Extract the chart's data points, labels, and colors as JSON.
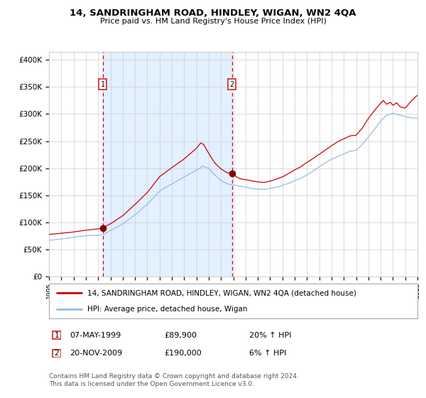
{
  "title_line1": "14, SANDRINGHAM ROAD, HINDLEY, WIGAN, WN2 4QA",
  "title_line2": "Price paid vs. HM Land Registry's House Price Index (HPI)",
  "ylabel_ticks": [
    "£0",
    "£50K",
    "£100K",
    "£150K",
    "£200K",
    "£250K",
    "£300K",
    "£350K",
    "£400K"
  ],
  "ytick_values": [
    0,
    50000,
    100000,
    150000,
    200000,
    250000,
    300000,
    350000,
    400000
  ],
  "ylim": [
    0,
    415000
  ],
  "xlim_start": 1995,
  "xlim_end": 2025,
  "xtick_years": [
    1995,
    1996,
    1997,
    1998,
    1999,
    2000,
    2001,
    2002,
    2003,
    2004,
    2005,
    2006,
    2007,
    2008,
    2009,
    2010,
    2011,
    2012,
    2013,
    2014,
    2015,
    2016,
    2017,
    2018,
    2019,
    2020,
    2021,
    2022,
    2023,
    2024,
    2025
  ],
  "sale1_year": 1999.37,
  "sale1_price": 89900,
  "sale2_year": 2009.9,
  "sale2_price": 190000,
  "legend_line1": "14, SANDRINGHAM ROAD, HINDLEY, WIGAN, WN2 4QA (detached house)",
  "legend_line2": "HPI: Average price, detached house, Wigan",
  "table_row1": [
    "1",
    "07-MAY-1999",
    "£89,900",
    "20% ↑ HPI"
  ],
  "table_row2": [
    "2",
    "20-NOV-2009",
    "£190,000",
    "6% ↑ HPI"
  ],
  "footer": "Contains HM Land Registry data © Crown copyright and database right 2024.\nThis data is licensed under the Open Government Licence v3.0.",
  "red_color": "#cc0000",
  "blue_color": "#99bbdd",
  "grid_color": "#cccccc",
  "shading_color": "#ddeeff",
  "box_edge_color": "#cc2222"
}
